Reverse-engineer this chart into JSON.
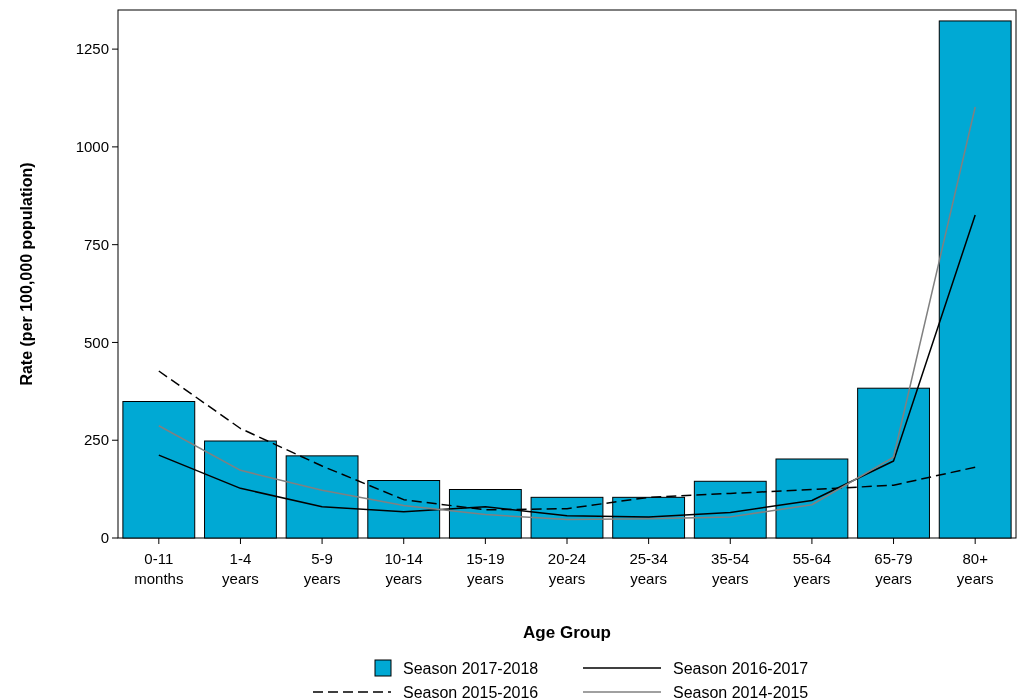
{
  "chart_data": {
    "type": "bar",
    "xlabel": "Age Group",
    "ylabel": "Rate (per 100,000 population)",
    "categories": [
      "0-11 months",
      "1-4 years",
      "5-9 years",
      "10-14 years",
      "15-19 years",
      "20-24 years",
      "25-34 years",
      "35-54 years",
      "55-64 years",
      "65-79 years",
      "80+ years"
    ],
    "series": [
      {
        "name": "Season 2017-2018",
        "color": "#00a9d4",
        "values": [
          349,
          248,
          210,
          147,
          124,
          104,
          104,
          145,
          202,
          383,
          1322
        ]
      },
      {
        "name": "Season 2016-2017",
        "type": "line",
        "color": "#000000",
        "line_style": "solid",
        "values": [
          212,
          127,
          80,
          67,
          80,
          57,
          54,
          65,
          96,
          197,
          826
        ]
      },
      {
        "name": "Season 2015-2016",
        "type": "line",
        "color": "#000000",
        "line_style": "dashed",
        "values": [
          427,
          280,
          184,
          98,
          72,
          75,
          104,
          114,
          124,
          135,
          181
        ]
      },
      {
        "name": "Season 2014-2015",
        "type": "line",
        "color": "#808080",
        "line_style": "solid",
        "values": [
          287,
          173,
          122,
          83,
          60,
          47,
          49,
          54,
          85,
          207,
          1102
        ]
      }
    ],
    "ylim": [
      0,
      1350
    ],
    "yticks": [
      0,
      250,
      500,
      750,
      1000,
      1250
    ],
    "grid": false,
    "legend": "bottom"
  }
}
